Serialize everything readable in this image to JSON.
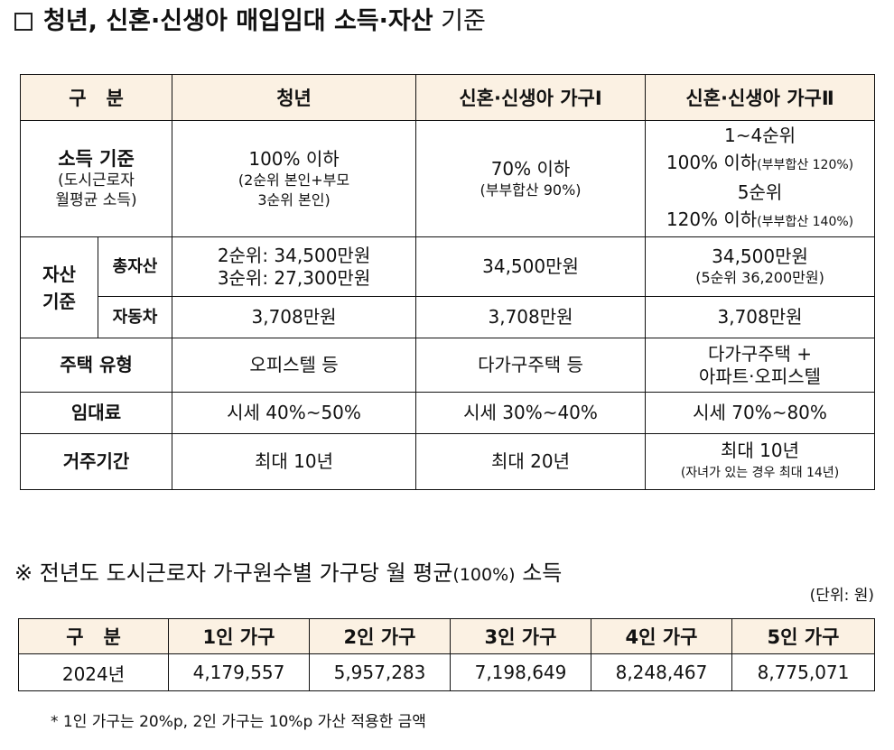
{
  "heading1": {
    "title_bold": "청년, 신혼·신생아 매입임대 소득·자산",
    "title_rest": "기준"
  },
  "table1": {
    "headers": [
      "구   분",
      "청년",
      "신혼·신생아 가구Ⅰ",
      "신혼·신생아 가구Ⅱ"
    ],
    "income": {
      "label": "소득 기준",
      "label_sub1": "(도시근로자",
      "label_sub2": "월평균 소득)",
      "youth_main": "100% 이하",
      "youth_sub1": "(2순위 본인+부모",
      "youth_sub2": "3순위 본인)",
      "newlywed1_main": "70% 이하",
      "newlywed1_sub": "(부부합산 90%)",
      "newlywed2_line1": "1~4순위",
      "newlywed2_line2_main": "100% 이하",
      "newlywed2_line2_sub": "(부부합산 120%)",
      "newlywed2_line3": "5순위",
      "newlywed2_line4_main": "120% 이하",
      "newlywed2_line4_sub": "(부부합산 140%)"
    },
    "assets": {
      "label": "자산 기준",
      "total_label": "총자산",
      "car_label": "자동차",
      "youth_total1": "2순위: 34,500만원",
      "youth_total2": "3순위: 27,300만원",
      "newlywed1_total": "34,500만원",
      "newlywed2_total1": "34,500만원",
      "newlywed2_total2": "(5순위 36,200만원)",
      "youth_car": "3,708만원",
      "newlywed1_car": "3,708만원",
      "newlywed2_car": "3,708만원"
    },
    "housing": {
      "label": "주택 유형",
      "youth": "오피스텔 등",
      "newlywed1": "다가구주택 등",
      "newlywed2_line1": "다가구주택 +",
      "newlywed2_line2": "아파트·오피스텔"
    },
    "rent": {
      "label": "임대료",
      "youth": "시세 40%~50%",
      "newlywed1": "시세 30%~40%",
      "newlywed2": "시세 70%~80%"
    },
    "period": {
      "label": "거주기간",
      "youth": "최대 10년",
      "newlywed1": "최대 20년",
      "newlywed2_line1": "최대 10년",
      "newlywed2_line2": "(자녀가 있는 경우 최대 14년)"
    }
  },
  "heading2": {
    "symbol": "※",
    "text": "전년도 도시근로자 가구원수별 가구당 월 평균",
    "paren": "(100%)",
    "tail": "소득"
  },
  "unit": "(단위: 원)",
  "table2": {
    "headers": [
      "구   분",
      "1인 가구",
      "2인 가구",
      "3인 가구",
      "4인 가구",
      "5인 가구"
    ],
    "row": [
      "2024년",
      "4,179,557",
      "5,957,283",
      "7,198,649",
      "8,248,467",
      "8,775,071"
    ]
  },
  "footnote": "* 1인 가구는 20%p, 2인 가구는 10%p 가산 적용한 금액"
}
